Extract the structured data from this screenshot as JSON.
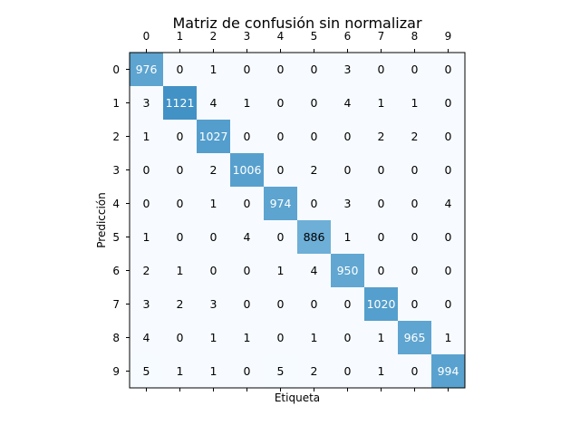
{
  "chart_data": {
    "type": "heatmap",
    "title": "Matriz de confusión sin normalizar",
    "xlabel": "Etiqueta",
    "ylabel": "Predicción",
    "x_categories": [
      "0",
      "1",
      "2",
      "3",
      "4",
      "5",
      "6",
      "7",
      "8",
      "9"
    ],
    "y_categories": [
      "0",
      "1",
      "2",
      "3",
      "4",
      "5",
      "6",
      "7",
      "8",
      "9"
    ],
    "values": [
      [
        976,
        0,
        1,
        0,
        0,
        0,
        3,
        0,
        0,
        0
      ],
      [
        3,
        1121,
        4,
        1,
        0,
        0,
        4,
        1,
        1,
        0
      ],
      [
        1,
        0,
        1027,
        0,
        0,
        0,
        0,
        2,
        2,
        0
      ],
      [
        0,
        0,
        2,
        1006,
        0,
        2,
        0,
        0,
        0,
        0
      ],
      [
        0,
        0,
        1,
        0,
        974,
        0,
        3,
        0,
        0,
        4
      ],
      [
        1,
        0,
        0,
        4,
        0,
        886,
        1,
        0,
        0,
        0
      ],
      [
        2,
        1,
        0,
        0,
        1,
        4,
        950,
        0,
        0,
        0
      ],
      [
        3,
        2,
        3,
        0,
        0,
        0,
        0,
        1020,
        0,
        0
      ],
      [
        4,
        0,
        1,
        1,
        0,
        1,
        0,
        1,
        965,
        1
      ],
      [
        5,
        1,
        1,
        0,
        5,
        2,
        0,
        1,
        0,
        994
      ]
    ],
    "colormap": "Blues",
    "x_tick_position": "top",
    "grid": false
  }
}
